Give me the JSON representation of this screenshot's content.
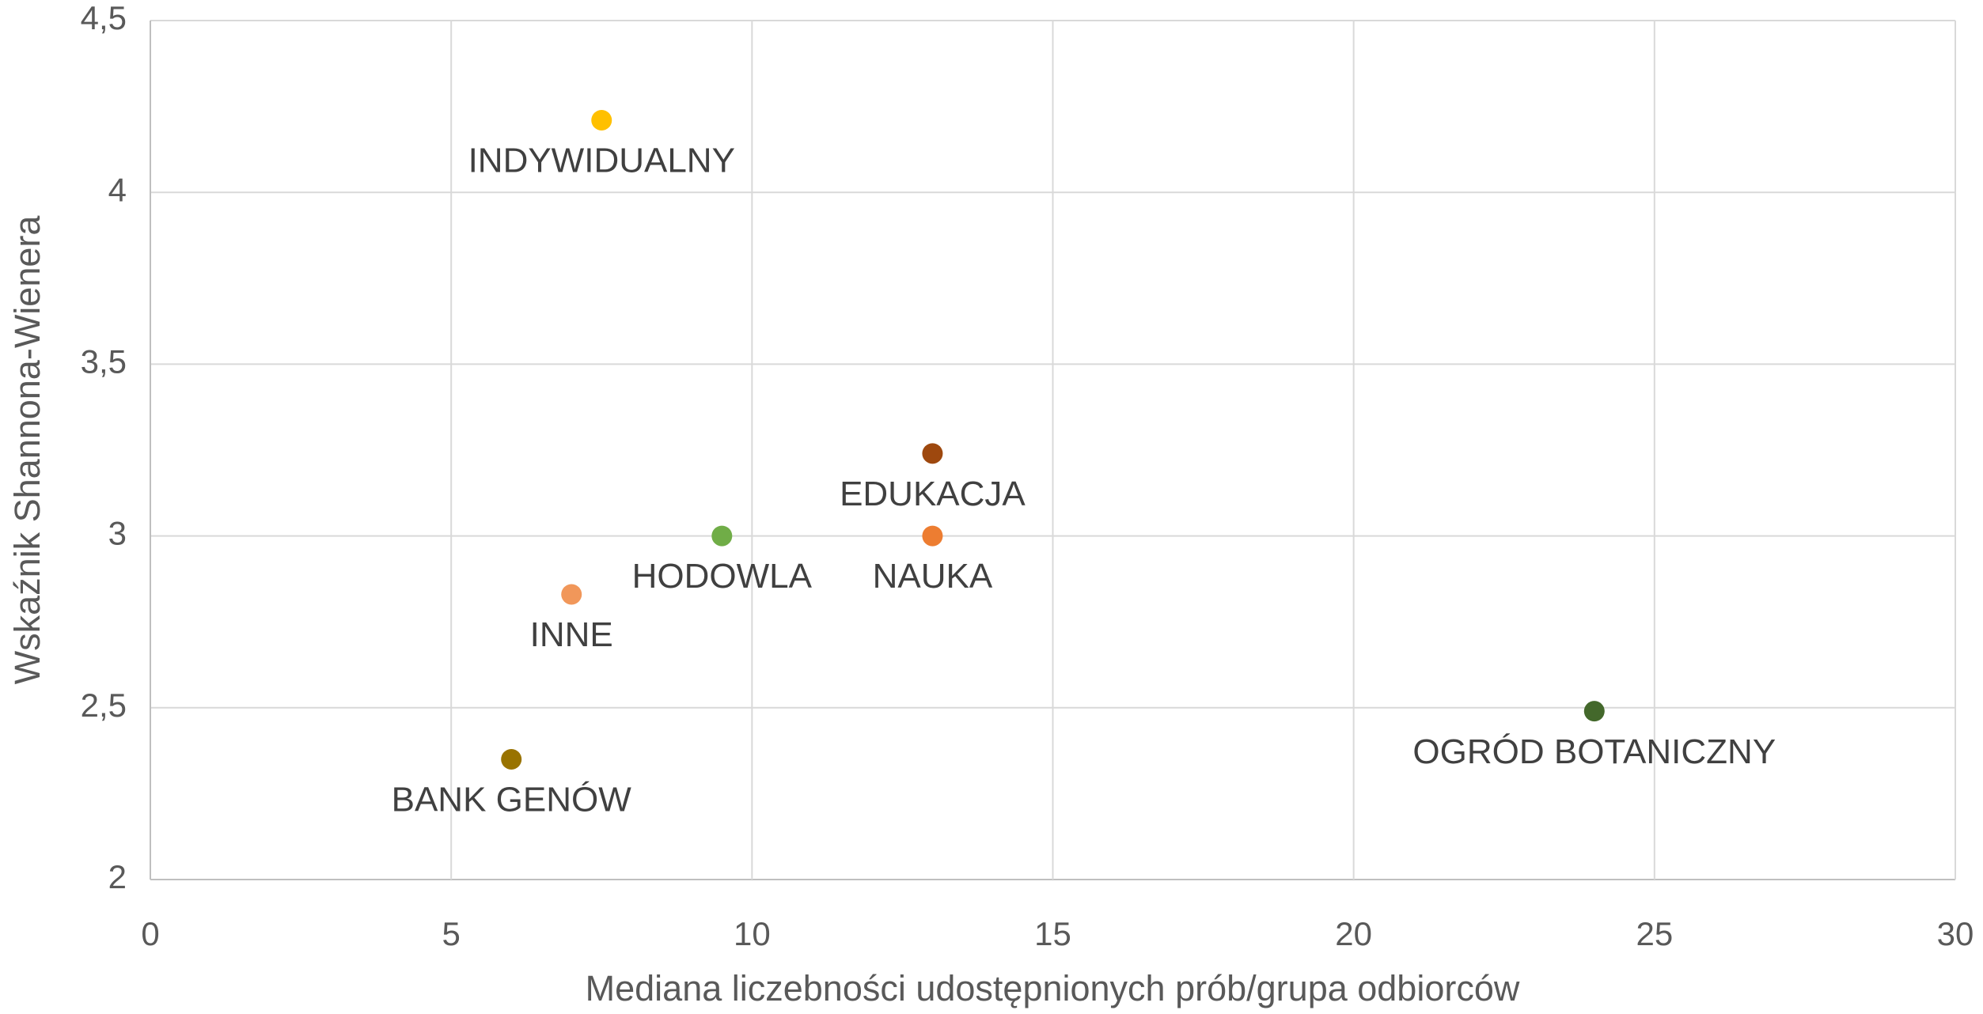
{
  "chart_data": {
    "type": "scatter",
    "x_label": "Mediana liczebności udostępnionych prób/grupa odbiorców",
    "y_label": "Wskaźnik Shannona-Wienera",
    "xlim": [
      0,
      30
    ],
    "xticks": [
      0,
      5,
      10,
      15,
      20,
      25,
      30
    ],
    "ylim": [
      2,
      4.5
    ],
    "yticks": [
      2,
      {
        "value": 2.5,
        "label": "2,5"
      },
      3,
      {
        "value": 3.5,
        "label": "3,5"
      },
      4,
      {
        "value": 4.5,
        "label": "4,5"
      }
    ],
    "grid": true,
    "series": [
      {
        "name": "INDYWIDUALNY",
        "color": "#FFC000",
        "x": [
          7.5
        ],
        "values": [
          4.21
        ]
      },
      {
        "name": "EDUKACJA",
        "color": "#9E480E",
        "x": [
          13
        ],
        "values": [
          3.24
        ]
      },
      {
        "name": "NAUKA",
        "color": "#ED7D31",
        "x": [
          13
        ],
        "values": [
          3.0
        ]
      },
      {
        "name": "HODOWLA",
        "color": "#70AD47",
        "x": [
          9.5
        ],
        "values": [
          3.0
        ]
      },
      {
        "name": "INNE",
        "color": "#F1975A",
        "x": [
          7
        ],
        "values": [
          2.83
        ]
      },
      {
        "name": "BANK GENÓW",
        "color": "#997300",
        "x": [
          6
        ],
        "values": [
          2.35
        ]
      },
      {
        "name": "OGRÓD BOTANICZNY",
        "color": "#43682B",
        "x": [
          24
        ],
        "values": [
          2.49
        ]
      }
    ]
  }
}
